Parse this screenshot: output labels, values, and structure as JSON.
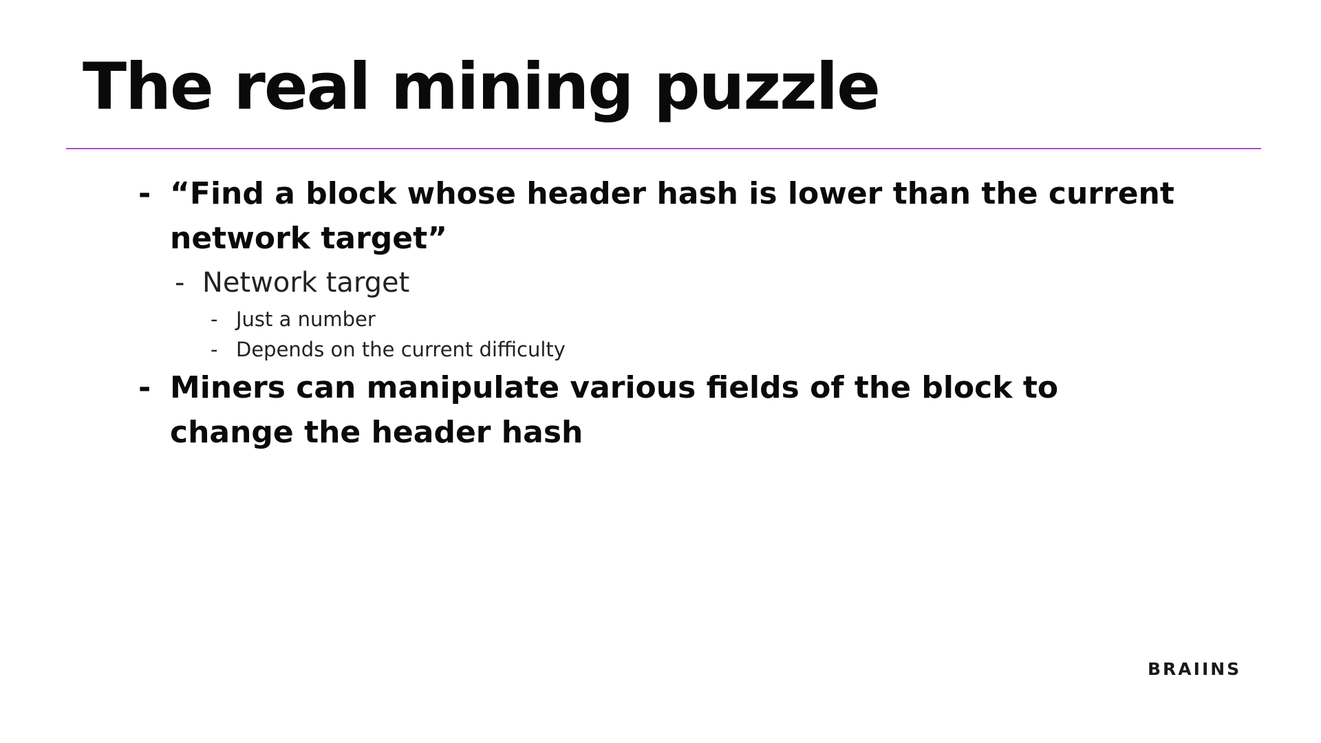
{
  "slide": {
    "title": "The real mining puzzle",
    "accent_color": "#b04cd0",
    "bullets": [
      {
        "marker": "-",
        "text": "“Find a block whose header hash is lower than the current network target”"
      },
      {
        "marker": "-",
        "text": "Network target"
      },
      {
        "marker": "-",
        "text": "Just a number"
      },
      {
        "marker": "-",
        "text": "Depends on the current difficulty"
      },
      {
        "marker": "-",
        "text": "Miners can manipulate various fields of the block to change the header hash"
      }
    ],
    "logo_text": "BRAIINS"
  }
}
